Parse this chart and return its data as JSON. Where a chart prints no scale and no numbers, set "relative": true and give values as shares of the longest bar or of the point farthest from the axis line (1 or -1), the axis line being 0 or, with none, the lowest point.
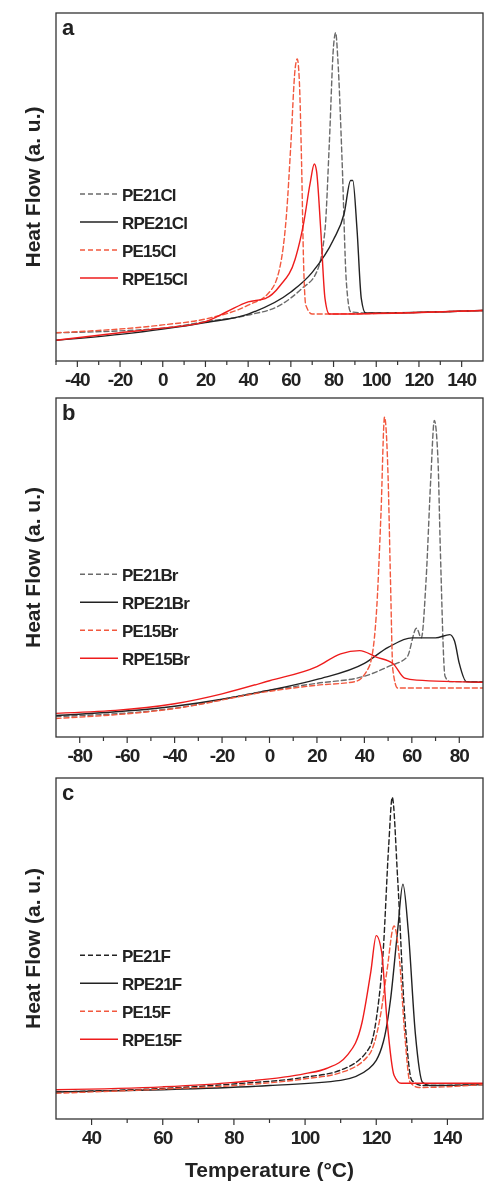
{
  "chart_data": [
    {
      "type": "line",
      "title": "a",
      "ylabel": "Heat Flow (a. u.)",
      "relative": true,
      "legend": "left",
      "xlim": [
        -50,
        150
      ],
      "xticks": [
        {
          "value": -50,
          "label": null
        },
        -40,
        {
          "value": -30,
          "label": null
        },
        -20,
        {
          "value": -10,
          "label": null
        },
        0,
        {
          "value": 10,
          "label": null
        },
        20,
        {
          "value": 30,
          "label": null
        },
        40,
        {
          "value": 50,
          "label": null
        },
        60,
        {
          "value": 70,
          "label": null
        },
        80,
        {
          "value": 90,
          "label": null
        },
        100,
        {
          "value": 110,
          "label": null
        },
        120,
        {
          "value": 130,
          "label": null
        },
        140
      ],
      "series": [
        {
          "name": "PE21Cl",
          "color": "#6a6a6a",
          "line_style": "dashed",
          "x": [
            -50,
            0,
            20,
            40,
            55,
            65,
            72,
            76,
            78,
            80,
            81,
            82,
            84,
            86,
            88,
            95,
            150
          ],
          "values": [
            0.086,
            0.1,
            0.12,
            0.14,
            0.17,
            0.22,
            0.27,
            0.4,
            0.66,
            0.96,
            1,
            0.92,
            0.61,
            0.24,
            0.15,
            0.146,
            0.154
          ]
        },
        {
          "name": "RPE21Cl",
          "color": "#222222",
          "line_style": "solid",
          "x": [
            -50,
            -20,
            0,
            20,
            40,
            60,
            70,
            80,
            85,
            88,
            89,
            91,
            93,
            95,
            150
          ],
          "values": [
            0.063,
            0.081,
            0.097,
            0.117,
            0.143,
            0.21,
            0.27,
            0.37,
            0.45,
            0.55,
            0.55,
            0.4,
            0.19,
            0.146,
            0.154
          ]
        },
        {
          "name": "PE15Cl",
          "color": "#f2583e",
          "line_style": "dashed",
          "x": [
            -50,
            0,
            20,
            40,
            50,
            55,
            58,
            60,
            62,
            63,
            64,
            65,
            66,
            67,
            70,
            150
          ],
          "values": [
            0.086,
            0.11,
            0.128,
            0.17,
            0.21,
            0.29,
            0.45,
            0.66,
            0.89,
            0.92,
            0.85,
            0.61,
            0.29,
            0.17,
            0.143,
            0.154
          ]
        },
        {
          "name": "RPE15Cl",
          "color": "#ee1c1c",
          "line_style": "solid",
          "x": [
            -50,
            -20,
            0,
            20,
            30,
            40,
            48,
            55,
            62,
            66,
            69,
            71,
            72,
            74,
            76,
            78,
            150
          ],
          "values": [
            0.063,
            0.086,
            0.1,
            0.12,
            0.15,
            0.18,
            0.19,
            0.23,
            0.31,
            0.42,
            0.54,
            0.6,
            0.58,
            0.4,
            0.19,
            0.143,
            0.154
          ]
        }
      ]
    },
    {
      "type": "line",
      "title": "b",
      "ylabel": "Heat Flow (a. u.)",
      "relative": true,
      "legend": "left",
      "xlim": [
        -90,
        90
      ],
      "xticks": [
        -80,
        {
          "value": -70,
          "label": null
        },
        -60,
        {
          "value": -50,
          "label": null
        },
        -40,
        {
          "value": -30,
          "label": null
        },
        -20,
        {
          "value": -10,
          "label": null
        },
        0,
        {
          "value": 10,
          "label": null
        },
        20,
        {
          "value": 30,
          "label": null
        },
        40,
        {
          "value": 50,
          "label": null
        },
        60,
        {
          "value": 70,
          "label": null
        },
        80
      ],
      "series": [
        {
          "name": "PE21Br",
          "color": "#6a6a6a",
          "line_style": "dashed",
          "x": [
            -90,
            -40,
            0,
            20,
            40,
            50,
            58,
            62,
            64,
            66,
            68,
            69.5,
            71,
            72,
            74,
            76,
            90
          ],
          "values": [
            0.064,
            0.09,
            0.146,
            0.168,
            0.19,
            0.22,
            0.25,
            0.34,
            0.31,
            0.49,
            0.81,
            0.99,
            0.87,
            0.59,
            0.19,
            0.173,
            0.173
          ]
        },
        {
          "name": "RPE21Br",
          "color": "#222222",
          "line_style": "solid",
          "x": [
            -90,
            -40,
            -20,
            0,
            20,
            40,
            50,
            60,
            70,
            76,
            78,
            80,
            83,
            90
          ],
          "values": [
            0.067,
            0.096,
            0.118,
            0.146,
            0.18,
            0.23,
            0.28,
            0.31,
            0.31,
            0.32,
            0.3,
            0.23,
            0.173,
            0.171
          ]
        },
        {
          "name": "PE15Br",
          "color": "#f2583e",
          "line_style": "dashed",
          "x": [
            -90,
            -40,
            0,
            20,
            36,
            42,
            45,
            47,
            48.5,
            50,
            51,
            52,
            54,
            90
          ],
          "values": [
            0.058,
            0.089,
            0.143,
            0.162,
            0.173,
            0.22,
            0.38,
            0.7,
            1,
            0.81,
            0.49,
            0.21,
            0.153,
            0.153
          ]
        },
        {
          "name": "RPE15Br",
          "color": "#ee1c1c",
          "line_style": "solid",
          "x": [
            -90,
            -40,
            -20,
            0,
            20,
            30,
            38,
            45,
            52,
            57,
            62,
            90
          ],
          "values": [
            0.074,
            0.104,
            0.135,
            0.176,
            0.22,
            0.26,
            0.27,
            0.25,
            0.23,
            0.184,
            0.178,
            0.171
          ]
        }
      ]
    },
    {
      "type": "line",
      "title": "c",
      "ylabel": "Heat Flow (a. u.)",
      "xlabel": "Temperature (°C)",
      "relative": true,
      "legend": "left",
      "xlim": [
        30,
        150
      ],
      "xticks": [
        40,
        {
          "value": 50,
          "label": null
        },
        60,
        {
          "value": 70,
          "label": null
        },
        80,
        {
          "value": 90,
          "label": null
        },
        100,
        {
          "value": 110,
          "label": null
        },
        120,
        {
          "value": 130,
          "label": null
        },
        140
      ],
      "series": [
        {
          "name": "PE21F",
          "color": "#222222",
          "line_style": "dashed",
          "x": [
            30,
            60,
            80,
            100,
            110,
            118,
            120,
            122,
            123.5,
            124.5,
            126,
            128,
            130,
            133,
            150
          ],
          "values": [
            0.084,
            0.095,
            0.109,
            0.13,
            0.152,
            0.22,
            0.31,
            0.53,
            0.85,
            1,
            0.75,
            0.32,
            0.12,
            0.104,
            0.107
          ]
        },
        {
          "name": "RPE21F",
          "color": "#222222",
          "line_style": "solid",
          "x": [
            30,
            60,
            90,
            110,
            118,
            122,
            124,
            126,
            127.5,
            129,
            131,
            133,
            135,
            150
          ],
          "values": [
            0.084,
            0.091,
            0.104,
            0.12,
            0.157,
            0.24,
            0.37,
            0.585,
            0.73,
            0.585,
            0.264,
            0.114,
            0.104,
            0.107
          ]
        },
        {
          "name": "PE15F",
          "color": "#f2583e",
          "line_style": "dashed",
          "x": [
            30,
            60,
            80,
            100,
            110,
            118,
            121,
            123,
            125,
            126.5,
            128,
            129.5,
            132,
            150
          ],
          "values": [
            0.08,
            0.093,
            0.104,
            0.125,
            0.144,
            0.2,
            0.31,
            0.46,
            0.6,
            0.5,
            0.264,
            0.114,
            0.098,
            0.107
          ]
        },
        {
          "name": "RPE15F",
          "color": "#ee1c1c",
          "line_style": "solid",
          "x": [
            30,
            60,
            80,
            100,
            106,
            112,
            116,
            118.5,
            120,
            121.5,
            123,
            125,
            127,
            150
          ],
          "values": [
            0.091,
            0.1,
            0.114,
            0.141,
            0.157,
            0.2,
            0.3,
            0.46,
            0.57,
            0.52,
            0.31,
            0.136,
            0.111,
            0.111
          ]
        }
      ]
    }
  ]
}
